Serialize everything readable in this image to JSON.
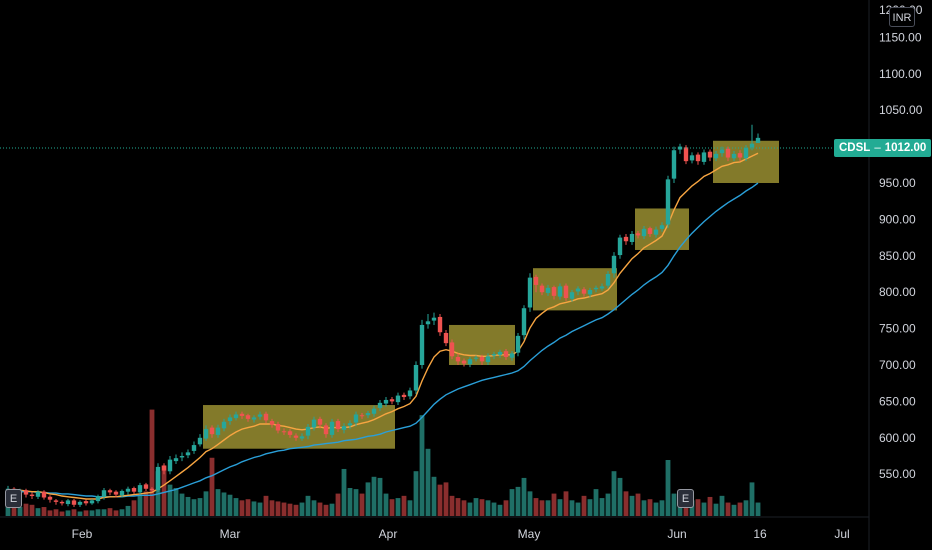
{
  "header": {
    "currency": "INR",
    "top_price_partial": "1200.00"
  },
  "last_price": {
    "symbol": "CDSL",
    "separator": "–",
    "value": "1012.00"
  },
  "event_markers": [
    "E",
    "E"
  ],
  "colors": {
    "background": "#000000",
    "up": "#26a69a",
    "down": "#ef5350",
    "volume_up": "#1f6f66",
    "volume_down": "#8a2e2e",
    "ema_fast": "#f7a541",
    "ema_slow": "#2a9fd8",
    "highlight_box": "#b5a93a",
    "axis_text": "#d1d4dc"
  },
  "chart_data": {
    "type": "candlestick",
    "symbol": "CDSL",
    "currency": "INR",
    "last_price": 1012,
    "y_ticks": [
      550,
      600,
      650,
      700,
      750,
      800,
      850,
      900,
      950,
      1000,
      1050,
      1100,
      1150
    ],
    "y_tick_labels": [
      "550.00",
      "600.00",
      "650.00",
      "700.00",
      "750.00",
      "800.00",
      "850.00",
      "900.00",
      "950.00",
      "1000.00",
      "1050.00",
      "1100.00",
      "1150.00"
    ],
    "ylim": [
      515,
      1200
    ],
    "x_labels": [
      "Feb",
      "Mar",
      "Apr",
      "May",
      "Jun",
      "16",
      "Jul"
    ],
    "grid": false,
    "series": [
      {
        "name": "price",
        "kind": "candles",
        "close": [
          530,
          525,
          528,
          522,
          520,
          526,
          518,
          515,
          512,
          510,
          514,
          508,
          512,
          510,
          514,
          520,
          528,
          525,
          522,
          527,
          530,
          526,
          535,
          530,
          528,
          560,
          555,
          570,
          572,
          575,
          580,
          590,
          600,
          612,
          605,
          614,
          622,
          628,
          632,
          630,
          626,
          628,
          632,
          624,
          618,
          610,
          608,
          604,
          600,
          602,
          615,
          625,
          618,
          605,
          622,
          612,
          616,
          620,
          632,
          630,
          634,
          640,
          648,
          652,
          650,
          658,
          656,
          665,
          700,
          755,
          760,
          765,
          745,
          730,
          712,
          705,
          702,
          708,
          710,
          705,
          712,
          715,
          718,
          711,
          716,
          740,
          778,
          820,
          810,
          800,
          806,
          795,
          808,
          792,
          800,
          805,
          798,
          803,
          806,
          808,
          825,
          850,
          875,
          870,
          880,
          878,
          887,
          880,
          886,
          892,
          955,
          995,
          1000,
          980,
          988,
          980,
          992,
          985,
          990,
          996,
          985,
          990,
          985,
          998,
          1004,
          1012
        ],
        "open": [
          525,
          530,
          524,
          528,
          522,
          519,
          526,
          519,
          514,
          512,
          509,
          514,
          508,
          513,
          510,
          513,
          519,
          528,
          526,
          521,
          526,
          531,
          525,
          536,
          530,
          528,
          562,
          554,
          568,
          573,
          576,
          582,
          591,
          599,
          614,
          604,
          613,
          623,
          627,
          633,
          631,
          625,
          629,
          633,
          623,
          619,
          609,
          609,
          603,
          599,
          603,
          614,
          626,
          617,
          604,
          623,
          611,
          617,
          621,
          631,
          631,
          633,
          641,
          647,
          653,
          649,
          659,
          657,
          665,
          700,
          756,
          761,
          766,
          744,
          731,
          711,
          706,
          701,
          709,
          711,
          704,
          713,
          714,
          719,
          710,
          717,
          741,
          779,
          821,
          809,
          799,
          807,
          794,
          809,
          791,
          801,
          804,
          797,
          804,
          805,
          809,
          826,
          851,
          876,
          869,
          881,
          877,
          888,
          879,
          887,
          893,
          956,
          996,
          999,
          981,
          989,
          979,
          993,
          984,
          991,
          997,
          984,
          991,
          984,
          999,
          1005
        ],
        "high": [
          534,
          532,
          530,
          530,
          525,
          528,
          528,
          521,
          516,
          514,
          516,
          516,
          514,
          515,
          516,
          522,
          531,
          530,
          528,
          529,
          533,
          533,
          538,
          538,
          532,
          565,
          565,
          575,
          577,
          580,
          584,
          595,
          605,
          617,
          617,
          618,
          626,
          632,
          636,
          636,
          633,
          631,
          636,
          636,
          626,
          622,
          613,
          612,
          606,
          606,
          619,
          629,
          629,
          620,
          626,
          626,
          620,
          624,
          636,
          634,
          637,
          644,
          652,
          656,
          656,
          662,
          662,
          669,
          705,
          762,
          770,
          772,
          770,
          748,
          735,
          716,
          709,
          711,
          713,
          714,
          716,
          718,
          721,
          722,
          719,
          744,
          782,
          826,
          824,
          812,
          810,
          809,
          812,
          812,
          803,
          808,
          807,
          806,
          809,
          812,
          829,
          855,
          879,
          880,
          884,
          884,
          891,
          890,
          890,
          896,
          960,
          1000,
          1004,
          1002,
          992,
          992,
          996,
          996,
          994,
          1000,
          1000,
          994,
          995,
          1002,
          1030,
          1018
        ],
        "low": [
          521,
          521,
          520,
          518,
          516,
          516,
          515,
          511,
          508,
          507,
          506,
          505,
          505,
          507,
          508,
          510,
          515,
          521,
          518,
          518,
          522,
          523,
          522,
          527,
          525,
          525,
          550,
          550,
          564,
          568,
          572,
          578,
          588,
          596,
          600,
          600,
          609,
          618,
          624,
          626,
          622,
          621,
          625,
          620,
          614,
          606,
          604,
          600,
          596,
          596,
          598,
          610,
          613,
          600,
          600,
          608,
          606,
          612,
          616,
          626,
          627,
          629,
          637,
          643,
          646,
          645,
          652,
          653,
          660,
          695,
          750,
          755,
          740,
          726,
          708,
          700,
          698,
          697,
          705,
          700,
          700,
          708,
          710,
          707,
          706,
          712,
          735,
          773,
          800,
          796,
          795,
          790,
          790,
          788,
          787,
          796,
          794,
          793,
          800,
          802,
          805,
          820,
          846,
          865,
          865,
          874,
          873,
          876,
          875,
          883,
          888,
          950,
          990,
          976,
          977,
          975,
          975,
          980,
          980,
          986,
          980,
          980,
          980,
          980,
          995,
          1005
        ]
      },
      {
        "name": "volume",
        "kind": "volume",
        "values": [
          12,
          9,
          8,
          11,
          10,
          7,
          8,
          5,
          6,
          4,
          5,
          6,
          4,
          5,
          5,
          6,
          6,
          7,
          5,
          6,
          9,
          14,
          18,
          22,
          95,
          40,
          45,
          28,
          25,
          20,
          17,
          15,
          16,
          22,
          52,
          24,
          21,
          19,
          16,
          14,
          15,
          13,
          12,
          18,
          14,
          13,
          12,
          11,
          10,
          12,
          18,
          14,
          12,
          10,
          11,
          20,
          42,
          25,
          24,
          20,
          30,
          35,
          34,
          20,
          15,
          16,
          18,
          14,
          40,
          90,
          60,
          35,
          28,
          30,
          18,
          16,
          14,
          12,
          16,
          15,
          14,
          12,
          10,
          14,
          24,
          26,
          34,
          22,
          16,
          14,
          14,
          20,
          15,
          22,
          14,
          12,
          18,
          15,
          24,
          16,
          20,
          40,
          34,
          22,
          18,
          20,
          14,
          15,
          12,
          14,
          50,
          20,
          18,
          20,
          14,
          15,
          12,
          17,
          11,
          18,
          12,
          10,
          12,
          14,
          30,
          12
        ]
      },
      {
        "name": "ema_fast",
        "kind": "line",
        "values": [
          528,
          528,
          528,
          527,
          526,
          526,
          525,
          523,
          522,
          520,
          519,
          518,
          517,
          516,
          516,
          516,
          518,
          519,
          519,
          520,
          521,
          522,
          523,
          524,
          525,
          530,
          535,
          541,
          547,
          553,
          559,
          566,
          573,
          581,
          585,
          591,
          597,
          603,
          608,
          612,
          614,
          616,
          619,
          619,
          619,
          617,
          616,
          614,
          612,
          611,
          612,
          614,
          615,
          613,
          614,
          614,
          614,
          615,
          618,
          620,
          622,
          625,
          629,
          633,
          636,
          640,
          643,
          647,
          657,
          678,
          696,
          711,
          719,
          721,
          719,
          716,
          714,
          713,
          713,
          712,
          712,
          713,
          714,
          714,
          714,
          719,
          732,
          751,
          764,
          771,
          777,
          780,
          784,
          786,
          788,
          791,
          792,
          794,
          796,
          798,
          803,
          813,
          826,
          836,
          846,
          853,
          861,
          866,
          871,
          877,
          893,
          913,
          930,
          938,
          946,
          952,
          959,
          963,
          968,
          973,
          975,
          978,
          979,
          983,
          987,
          991
        ]
      },
      {
        "name": "ema_slow",
        "kind": "line",
        "values": [
          527,
          527,
          526,
          526,
          526,
          525,
          525,
          524,
          524,
          523,
          523,
          522,
          521,
          520,
          520,
          519,
          519,
          519,
          519,
          519,
          520,
          520,
          521,
          521,
          521,
          523,
          525,
          527,
          529,
          532,
          535,
          538,
          541,
          545,
          548,
          552,
          556,
          560,
          563,
          567,
          570,
          573,
          575,
          578,
          580,
          582,
          583,
          585,
          586,
          587,
          588,
          590,
          591,
          592,
          593,
          594,
          596,
          597,
          598,
          600,
          602,
          603,
          605,
          608,
          610,
          612,
          614,
          616,
          620,
          628,
          637,
          646,
          653,
          659,
          663,
          667,
          670,
          673,
          676,
          679,
          681,
          683,
          685,
          687,
          689,
          692,
          698,
          706,
          713,
          720,
          726,
          731,
          737,
          741,
          746,
          750,
          754,
          758,
          762,
          765,
          770,
          776,
          783,
          790,
          797,
          803,
          810,
          816,
          821,
          827,
          837,
          850,
          862,
          872,
          881,
          889,
          897,
          904,
          911,
          917,
          923,
          928,
          933,
          939,
          944,
          950
        ]
      }
    ],
    "highlight_ranges": [
      {
        "from": 33,
        "to": 64,
        "low": 585,
        "high": 645
      },
      {
        "from": 74,
        "to": 84,
        "low": 700,
        "high": 755
      },
      {
        "from": 88,
        "to": 101,
        "low": 775,
        "high": 833
      },
      {
        "from": 105,
        "to": 113,
        "low": 858,
        "high": 915
      },
      {
        "from": 118,
        "to": 128,
        "low": 950,
        "high": 1008
      }
    ]
  }
}
